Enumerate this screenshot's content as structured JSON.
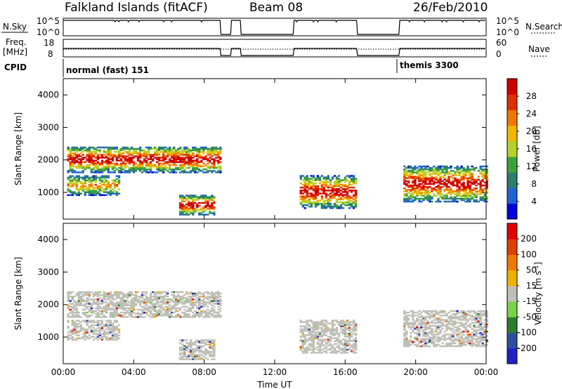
{
  "header": {
    "title": "Falkland Islands (fitACF)",
    "beam": "Beam 08",
    "date": "26/Feb/2010"
  },
  "strip": {
    "nsky_label": "N.Sky",
    "nsearch_label": "N.Search",
    "freq_label": "Freq.",
    "freq_unit": "[MHz]",
    "nave_label": "Nave",
    "cpid_label": "CPID",
    "nsky_ticks": [
      "10^5",
      "10^0"
    ],
    "nsky_right_ticks": [
      "10^5",
      "10^0"
    ],
    "freq_ticks": [
      "18",
      "8"
    ],
    "nave_ticks": [
      "60",
      "0"
    ],
    "cpid_modes": [
      {
        "label": "normal (fast) 151",
        "start_hour": 0
      },
      {
        "label": "themis 3300",
        "start_hour": 19.1
      }
    ]
  },
  "time_axis": {
    "label": "Time UT",
    "ticks": [
      "00:00",
      "04:00",
      "08:00",
      "12:00",
      "16:00",
      "20:00",
      "00:00"
    ]
  },
  "chart_data": [
    {
      "type": "heatmap",
      "name": "power",
      "ylabel": "Slant Range [km]",
      "yticks": [
        "4000",
        "3000",
        "2000",
        "1000"
      ],
      "ylim": [
        180,
        4500
      ],
      "xlim": [
        0,
        24
      ],
      "colorbar": {
        "label": "Power [dB]",
        "ticks": [
          "28",
          "24",
          "20",
          "16",
          "12",
          "8",
          "4"
        ],
        "colors": [
          "#0000e0",
          "#1e64d2",
          "#2e7d6e",
          "#3aa23a",
          "#b4d22c",
          "#f0b800",
          "#f07800",
          "#e03000",
          "#d00000"
        ]
      },
      "data_gaps_hours": [
        [
          8.9,
          9.5
        ],
        [
          10.1,
          13.1
        ],
        [
          16.7,
          19.1
        ]
      ],
      "echo_regions": [
        {
          "t0": 0.2,
          "t1": 9.0,
          "r0": 1600,
          "r1": 2400,
          "level": "high"
        },
        {
          "t0": 0.2,
          "t1": 3.2,
          "r0": 900,
          "r1": 1500,
          "level": "medium"
        },
        {
          "t0": 6.5,
          "t1": 8.6,
          "r0": 300,
          "r1": 900,
          "level": "high"
        },
        {
          "t0": 13.3,
          "t1": 16.6,
          "r0": 500,
          "r1": 1500,
          "level": "high"
        },
        {
          "t0": 19.2,
          "t1": 24.0,
          "r0": 700,
          "r1": 1800,
          "level": "high"
        }
      ]
    },
    {
      "type": "heatmap",
      "name": "velocity",
      "ylabel": "Slant Range [km]",
      "yticks": [
        "4000",
        "3000",
        "2000",
        "1000"
      ],
      "ylim": [
        180,
        4500
      ],
      "xlim": [
        0,
        24
      ],
      "colorbar": {
        "label": "Velocity [m s^-1]",
        "ticks": [
          "200",
          "100",
          "50",
          "15",
          "-15",
          "-50",
          "-100",
          "-200"
        ],
        "colors": [
          "#2222c8",
          "#2e50a0",
          "#2e7d2e",
          "#7bd24a",
          "#c0c0b8",
          "#f0b000",
          "#f07800",
          "#e04000",
          "#e00000"
        ]
      }
    }
  ]
}
